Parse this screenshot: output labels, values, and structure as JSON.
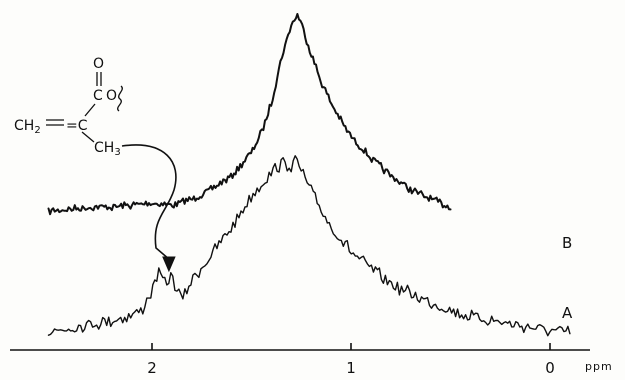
{
  "chart_data": {
    "type": "line",
    "xlabel": "ppm",
    "xlim": [
      2.55,
      -0.15
    ],
    "x_reversed": true,
    "ticks": [
      {
        "value": 2,
        "label": "2"
      },
      {
        "value": 1,
        "label": "1"
      },
      {
        "value": 0,
        "label": "0"
      }
    ],
    "grid": false,
    "series": [
      {
        "name": "B",
        "x": [
          2.52,
          2.4,
          2.3,
          2.2,
          2.1,
          2.0,
          1.9,
          1.8,
          1.7,
          1.6,
          1.5,
          1.45,
          1.4,
          1.35,
          1.3,
          1.27,
          1.25,
          1.2,
          1.15,
          1.1,
          1.05,
          1.0,
          0.9,
          0.8,
          0.7,
          0.6,
          0.5
        ],
        "y": [
          0.0,
          0.01,
          0.02,
          0.02,
          0.03,
          0.04,
          0.03,
          0.06,
          0.11,
          0.18,
          0.3,
          0.4,
          0.55,
          0.78,
          0.95,
          1.0,
          0.96,
          0.8,
          0.66,
          0.55,
          0.46,
          0.38,
          0.27,
          0.18,
          0.11,
          0.06,
          0.02
        ]
      },
      {
        "name": "A",
        "x": [
          2.52,
          2.4,
          2.3,
          2.2,
          2.1,
          2.05,
          2.0,
          1.97,
          1.95,
          1.93,
          1.9,
          1.87,
          1.85,
          1.8,
          1.7,
          1.6,
          1.5,
          1.4,
          1.35,
          1.3,
          1.28,
          1.25,
          1.2,
          1.1,
          1.0,
          0.9,
          0.8,
          0.7,
          0.6,
          0.5,
          0.4,
          0.3,
          0.2,
          0.1,
          0.0,
          -0.1
        ],
        "y": [
          0.02,
          0.05,
          0.07,
          0.09,
          0.12,
          0.15,
          0.26,
          0.35,
          0.33,
          0.3,
          0.34,
          0.25,
          0.21,
          0.32,
          0.46,
          0.62,
          0.8,
          0.93,
          0.98,
          0.97,
          1.0,
          0.94,
          0.82,
          0.62,
          0.48,
          0.38,
          0.3,
          0.24,
          0.19,
          0.15,
          0.11,
          0.09,
          0.07,
          0.05,
          0.03,
          0.02
        ]
      }
    ],
    "annotation": {
      "structure_lines": [
        "O",
        "CO",
        "CH2=C",
        "CH3"
      ],
      "points_to_ppm": 1.93
    }
  },
  "labels": {
    "series_b": "B",
    "series_a": "A",
    "unit": "ppm"
  },
  "structure": {
    "carbonyl_o": "O",
    "ester_c": "C",
    "ester_o": "O",
    "methylene_ch": "CH",
    "methylene_sub": "2",
    "eq_c": "=C",
    "methyl_ch": "CH",
    "methyl_sub": "3"
  }
}
